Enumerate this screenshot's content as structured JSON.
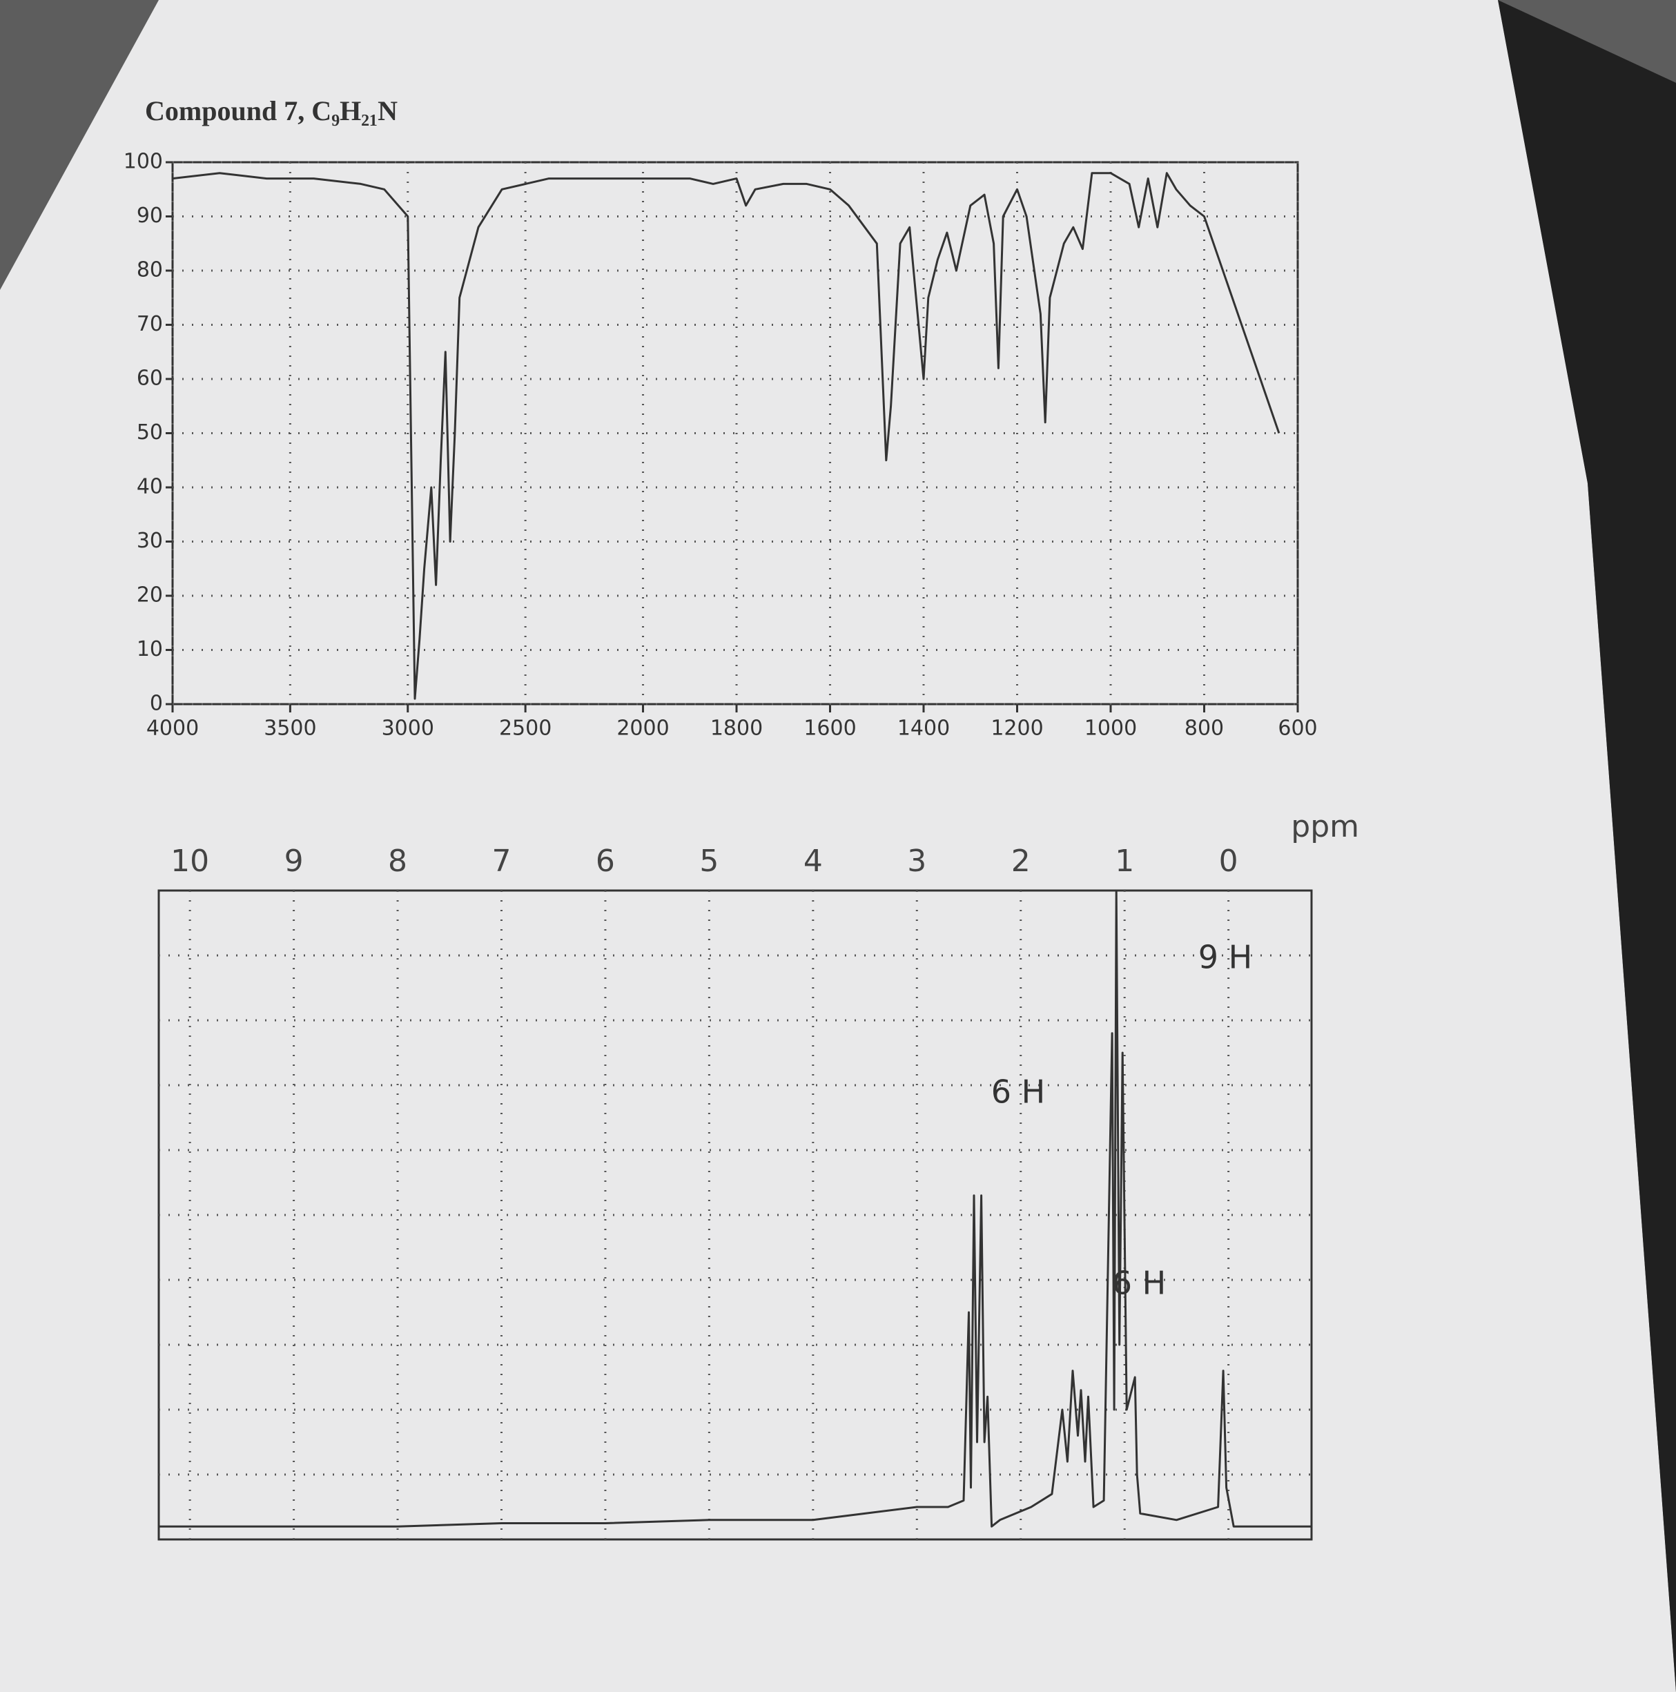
{
  "title": "Compound 7, C₉H₂₁N",
  "chart_data": [
    {
      "type": "line",
      "xscale": "broken",
      "grid": true,
      "color": "#333333",
      "xlim": [
        4000,
        600
      ],
      "ylim": [
        0,
        100
      ],
      "xticks": [
        4000,
        3500,
        3000,
        2500,
        2000,
        1800,
        1600,
        1400,
        1200,
        1000,
        800,
        600
      ],
      "yticks": [
        0,
        10,
        20,
        30,
        40,
        50,
        60,
        70,
        80,
        90,
        100
      ],
      "x": [
        4000,
        3800,
        3600,
        3400,
        3200,
        3100,
        3000,
        2990,
        2970,
        2950,
        2930,
        2900,
        2880,
        2860,
        2840,
        2820,
        2800,
        2780,
        2700,
        2600,
        2400,
        2200,
        2000,
        1900,
        1850,
        1800,
        1780,
        1760,
        1700,
        1650,
        1600,
        1560,
        1500,
        1480,
        1470,
        1450,
        1430,
        1400,
        1390,
        1370,
        1350,
        1330,
        1300,
        1270,
        1250,
        1240,
        1230,
        1200,
        1180,
        1150,
        1140,
        1130,
        1100,
        1080,
        1060,
        1040,
        1000,
        960,
        940,
        920,
        900,
        880,
        860,
        830,
        800,
        760,
        700,
        640
      ],
      "values": [
        97,
        98,
        97,
        97,
        96,
        95,
        90,
        60,
        1,
        12,
        25,
        40,
        22,
        45,
        65,
        30,
        50,
        75,
        88,
        95,
        97,
        97,
        97,
        97,
        96,
        97,
        92,
        95,
        96,
        96,
        95,
        92,
        85,
        45,
        55,
        85,
        88,
        60,
        75,
        82,
        87,
        80,
        92,
        94,
        85,
        62,
        90,
        95,
        90,
        72,
        52,
        75,
        85,
        88,
        84,
        98,
        98,
        96,
        88,
        97,
        88,
        98,
        95,
        92,
        90,
        80,
        65,
        50
      ]
    },
    {
      "type": "line",
      "xscale": "linear",
      "grid": true,
      "color": "#333333",
      "x_label": "ppm",
      "xlim": [
        10.3,
        -0.8
      ],
      "ylim": [
        0,
        10
      ],
      "xticks": [
        10,
        9,
        8,
        7,
        6,
        5,
        4,
        3,
        2,
        1,
        0
      ],
      "x": [
        10.3,
        9,
        8,
        7,
        6,
        5,
        4,
        3.5,
        3,
        2.7,
        2.55,
        2.5,
        2.48,
        2.45,
        2.42,
        2.38,
        2.35,
        2.32,
        2.28,
        2.2,
        1.9,
        1.7,
        1.6,
        1.55,
        1.5,
        1.45,
        1.42,
        1.38,
        1.35,
        1.3,
        1.2,
        1.12,
        1.1,
        1.08,
        1.05,
        1.02,
        0.98,
        0.9,
        0.88,
        0.85,
        0.5,
        0.1,
        0.05,
        0.02,
        -0.05,
        -0.8
      ],
      "values": [
        0.2,
        0.2,
        0.2,
        0.25,
        0.25,
        0.3,
        0.3,
        0.4,
        0.5,
        0.5,
        0.6,
        3.5,
        0.8,
        5.3,
        1.5,
        5.3,
        1.5,
        2.2,
        0.2,
        0.3,
        0.5,
        0.7,
        2.0,
        1.2,
        2.6,
        1.6,
        2.3,
        1.2,
        2.2,
        0.5,
        0.6,
        7.8,
        2.0,
        10,
        3.0,
        7.5,
        2.0,
        2.5,
        1.0,
        0.4,
        0.3,
        0.5,
        2.6,
        0.8,
        0.2,
        0.2
      ],
      "annotations": [
        "9 H",
        "6 H",
        "6 H"
      ]
    }
  ]
}
